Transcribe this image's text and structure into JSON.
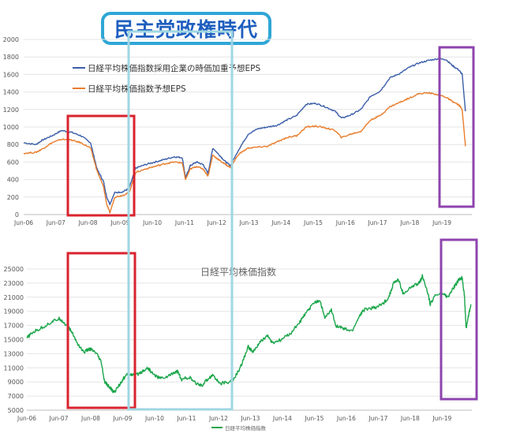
{
  "banner": {
    "text": "民主党政権時代",
    "color": "#1f5fbf",
    "border_color": "#2fa6d6"
  },
  "highlight_colors": {
    "red": "#d9232e",
    "purple": "#8e44ad",
    "light_blue": "#9fd6e2"
  },
  "chart_data": [
    {
      "type": "line",
      "title": "",
      "x_tick_labels": [
        "Jun-06",
        "Jun-07",
        "Jun-08",
        "Jun-09",
        "Jun-10",
        "Jun-11",
        "Jun-12",
        "Jun-13",
        "Jun-14",
        "Jun-15",
        "Jun-16",
        "Jun-17",
        "Jun-18",
        "Jun-19"
      ],
      "ylim": [
        0,
        2000
      ],
      "y_ticks": [
        0,
        200,
        400,
        600,
        800,
        1000,
        1200,
        1400,
        1600,
        1800,
        2000
      ],
      "legend_position": "top-left",
      "series": [
        {
          "name": "日経平均株価指数採用企業の時価加重予想EPS",
          "color": "#3b5ea8",
          "points": [
            [
              2006.42,
              820
            ],
            [
              2006.8,
              800
            ],
            [
              2007.0,
              850
            ],
            [
              2007.3,
              900
            ],
            [
              2007.6,
              960
            ],
            [
              2007.9,
              940
            ],
            [
              2008.2,
              900
            ],
            [
              2008.5,
              820
            ],
            [
              2008.7,
              520
            ],
            [
              2008.9,
              380
            ],
            [
              2009.0,
              200
            ],
            [
              2009.1,
              120
            ],
            [
              2009.25,
              250
            ],
            [
              2009.5,
              260
            ],
            [
              2009.7,
              300
            ],
            [
              2009.9,
              530
            ],
            [
              2010.2,
              570
            ],
            [
              2010.5,
              600
            ],
            [
              2010.8,
              630
            ],
            [
              2011.1,
              660
            ],
            [
              2011.35,
              650
            ],
            [
              2011.45,
              420
            ],
            [
              2011.6,
              560
            ],
            [
              2011.8,
              600
            ],
            [
              2012.0,
              570
            ],
            [
              2012.15,
              470
            ],
            [
              2012.3,
              760
            ],
            [
              2012.5,
              680
            ],
            [
              2012.7,
              600
            ],
            [
              2012.85,
              560
            ],
            [
              2013.1,
              740
            ],
            [
              2013.4,
              920
            ],
            [
              2013.7,
              980
            ],
            [
              2014.0,
              1000
            ],
            [
              2014.3,
              1020
            ],
            [
              2014.6,
              1080
            ],
            [
              2014.9,
              1130
            ],
            [
              2015.2,
              1260
            ],
            [
              2015.5,
              1270
            ],
            [
              2015.8,
              1230
            ],
            [
              2016.1,
              1180
            ],
            [
              2016.3,
              1100
            ],
            [
              2016.6,
              1140
            ],
            [
              2016.9,
              1200
            ],
            [
              2017.2,
              1350
            ],
            [
              2017.5,
              1410
            ],
            [
              2017.8,
              1560
            ],
            [
              2018.1,
              1610
            ],
            [
              2018.4,
              1680
            ],
            [
              2018.7,
              1730
            ],
            [
              2019.0,
              1760
            ],
            [
              2019.3,
              1780
            ],
            [
              2019.55,
              1770
            ],
            [
              2019.75,
              1700
            ],
            [
              2019.95,
              1650
            ],
            [
              2020.05,
              1600
            ],
            [
              2020.15,
              1180
            ]
          ]
        },
        {
          "name": "日経平均株価指数予想EPS",
          "color": "#e87d2c",
          "points": [
            [
              2006.42,
              700
            ],
            [
              2006.8,
              710
            ],
            [
              2007.0,
              750
            ],
            [
              2007.3,
              820
            ],
            [
              2007.6,
              860
            ],
            [
              2007.9,
              850
            ],
            [
              2008.2,
              820
            ],
            [
              2008.5,
              760
            ],
            [
              2008.7,
              500
            ],
            [
              2008.9,
              320
            ],
            [
              2009.0,
              120
            ],
            [
              2009.1,
              20
            ],
            [
              2009.25,
              200
            ],
            [
              2009.5,
              220
            ],
            [
              2009.7,
              250
            ],
            [
              2009.9,
              480
            ],
            [
              2010.2,
              520
            ],
            [
              2010.5,
              550
            ],
            [
              2010.8,
              580
            ],
            [
              2011.1,
              600
            ],
            [
              2011.35,
              590
            ],
            [
              2011.45,
              400
            ],
            [
              2011.6,
              520
            ],
            [
              2011.8,
              550
            ],
            [
              2012.0,
              520
            ],
            [
              2012.15,
              440
            ],
            [
              2012.3,
              680
            ],
            [
              2012.5,
              620
            ],
            [
              2012.7,
              570
            ],
            [
              2012.85,
              540
            ],
            [
              2013.1,
              690
            ],
            [
              2013.4,
              760
            ],
            [
              2013.7,
              770
            ],
            [
              2014.0,
              780
            ],
            [
              2014.3,
              830
            ],
            [
              2014.6,
              880
            ],
            [
              2014.9,
              900
            ],
            [
              2015.2,
              1000
            ],
            [
              2015.5,
              1010
            ],
            [
              2015.8,
              990
            ],
            [
              2016.1,
              960
            ],
            [
              2016.3,
              880
            ],
            [
              2016.6,
              920
            ],
            [
              2016.9,
              950
            ],
            [
              2017.2,
              1080
            ],
            [
              2017.5,
              1130
            ],
            [
              2017.8,
              1230
            ],
            [
              2018.1,
              1280
            ],
            [
              2018.4,
              1330
            ],
            [
              2018.7,
              1380
            ],
            [
              2019.0,
              1390
            ],
            [
              2019.3,
              1370
            ],
            [
              2019.55,
              1340
            ],
            [
              2019.75,
              1290
            ],
            [
              2019.95,
              1250
            ],
            [
              2020.05,
              1200
            ],
            [
              2020.15,
              780
            ]
          ]
        }
      ]
    },
    {
      "type": "line",
      "title": "日経平均株価指数",
      "x_tick_labels": [
        "Jun-06",
        "Jun-07",
        "Jun-08",
        "Jun-09",
        "Jun-10",
        "Jun-11",
        "Jun-12",
        "Jun-13",
        "Jun-14",
        "Jun-15",
        "Jun-16",
        "Jun-17",
        "Jun-18",
        "Jun-19"
      ],
      "ylim": [
        5000,
        25000
      ],
      "y_ticks": [
        5000,
        7000,
        9000,
        11000,
        13000,
        15000,
        17000,
        19000,
        21000,
        23000,
        25000
      ],
      "legend_position": "bottom",
      "series": [
        {
          "name": "日経平均株価指数",
          "color": "#1aa64a",
          "points": [
            [
              2006.42,
              15200
            ],
            [
              2006.6,
              16000
            ],
            [
              2006.9,
              16700
            ],
            [
              2007.2,
              17500
            ],
            [
              2007.45,
              18000
            ],
            [
              2007.6,
              17300
            ],
            [
              2007.8,
              16300
            ],
            [
              2008.0,
              14500
            ],
            [
              2008.2,
              13200
            ],
            [
              2008.4,
              13700
            ],
            [
              2008.6,
              13000
            ],
            [
              2008.75,
              11800
            ],
            [
              2008.85,
              9000
            ],
            [
              2009.0,
              8300
            ],
            [
              2009.15,
              7500
            ],
            [
              2009.3,
              8500
            ],
            [
              2009.45,
              9500
            ],
            [
              2009.6,
              10200
            ],
            [
              2009.8,
              9900
            ],
            [
              2010.0,
              10400
            ],
            [
              2010.2,
              11000
            ],
            [
              2010.4,
              10000
            ],
            [
              2010.6,
              9500
            ],
            [
              2010.85,
              9800
            ],
            [
              2011.0,
              10300
            ],
            [
              2011.15,
              10500
            ],
            [
              2011.25,
              9300
            ],
            [
              2011.5,
              9700
            ],
            [
              2011.7,
              8800
            ],
            [
              2011.9,
              8500
            ],
            [
              2012.1,
              9500
            ],
            [
              2012.25,
              10000
            ],
            [
              2012.45,
              8800
            ],
            [
              2012.7,
              8900
            ],
            [
              2012.9,
              9400
            ],
            [
              2013.1,
              11000
            ],
            [
              2013.35,
              14000
            ],
            [
              2013.5,
              13200
            ],
            [
              2013.7,
              14500
            ],
            [
              2013.95,
              15600
            ],
            [
              2014.1,
              14500
            ],
            [
              2014.4,
              15000
            ],
            [
              2014.7,
              16000
            ],
            [
              2014.95,
              17400
            ],
            [
              2015.2,
              19000
            ],
            [
              2015.45,
              20400
            ],
            [
              2015.6,
              20500
            ],
            [
              2015.75,
              18000
            ],
            [
              2015.95,
              19200
            ],
            [
              2016.1,
              17000
            ],
            [
              2016.35,
              16500
            ],
            [
              2016.6,
              16200
            ],
            [
              2016.85,
              18500
            ],
            [
              2017.0,
              19300
            ],
            [
              2017.3,
              19500
            ],
            [
              2017.55,
              20000
            ],
            [
              2017.75,
              21000
            ],
            [
              2017.9,
              23000
            ],
            [
              2018.05,
              23500
            ],
            [
              2018.2,
              21500
            ],
            [
              2018.45,
              22400
            ],
            [
              2018.7,
              23000
            ],
            [
              2018.8,
              24000
            ],
            [
              2018.95,
              22000
            ],
            [
              2019.05,
              20000
            ],
            [
              2019.2,
              21300
            ],
            [
              2019.45,
              21500
            ],
            [
              2019.6,
              21000
            ],
            [
              2019.8,
              22500
            ],
            [
              2019.95,
              23500
            ],
            [
              2020.05,
              23800
            ],
            [
              2020.12,
              21000
            ],
            [
              2020.17,
              16600
            ],
            [
              2020.25,
              18500
            ],
            [
              2020.32,
              20000
            ]
          ]
        }
      ]
    }
  ]
}
